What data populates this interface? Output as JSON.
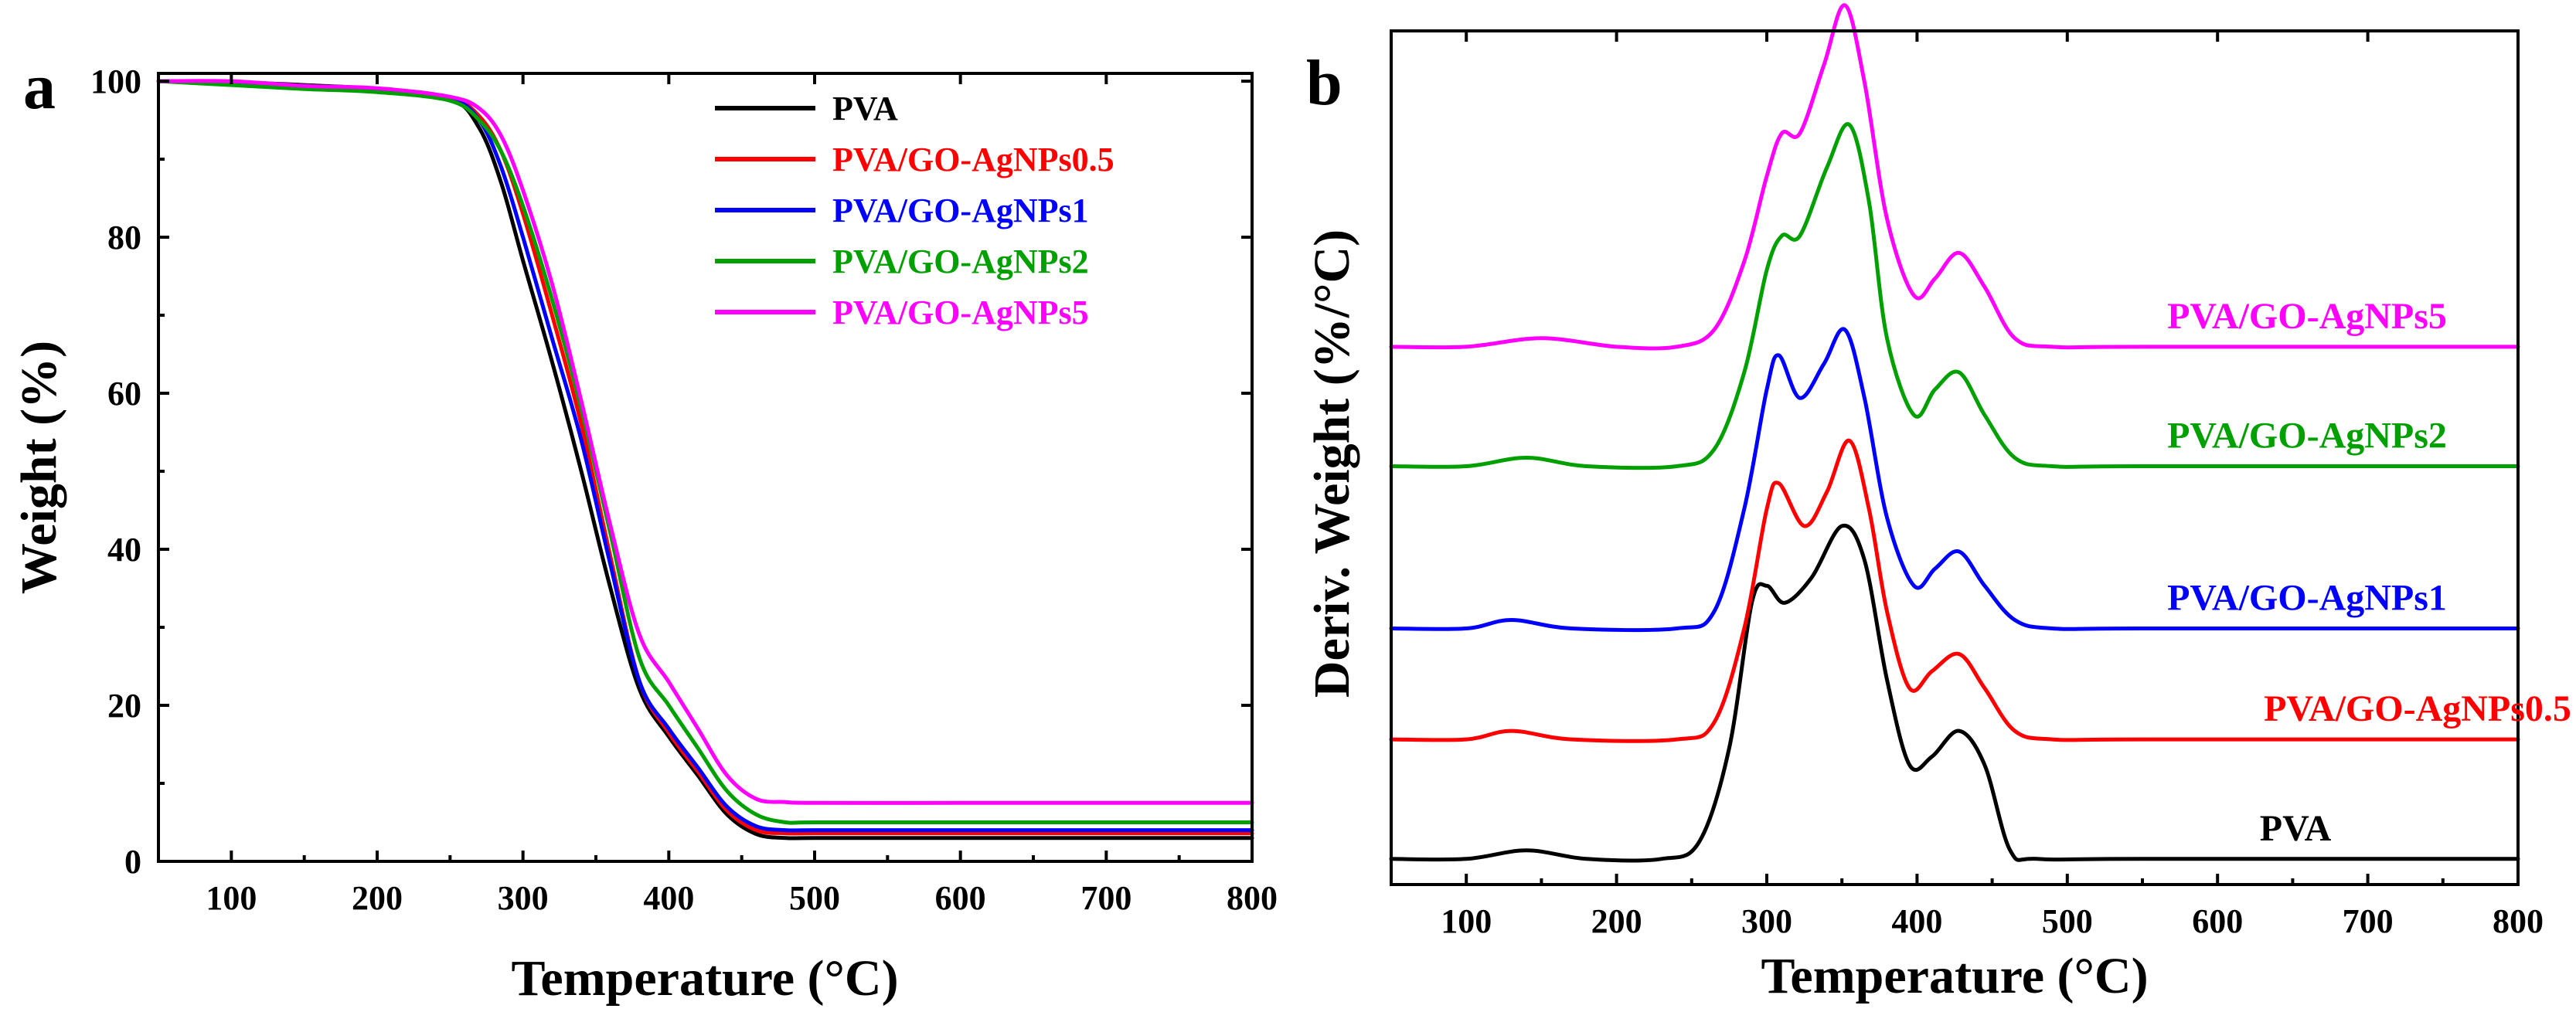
{
  "chart_data": [
    {
      "panel": "a",
      "type": "line",
      "title": "",
      "xlabel": "Temperature (°C)",
      "ylabel": "Weight (%)",
      "xlim": [
        50,
        800
      ],
      "ylim": [
        0,
        101
      ],
      "xticks": [
        100,
        200,
        300,
        400,
        500,
        600,
        700,
        800
      ],
      "yticks": [
        0,
        20,
        40,
        60,
        80,
        100
      ],
      "grid": false,
      "legend_position": "top-right",
      "series": [
        {
          "name": "PVA",
          "color": "#000000",
          "x": [
            50,
            100,
            150,
            200,
            250,
            270,
            285,
            300,
            320,
            340,
            360,
            380,
            400,
            420,
            440,
            460,
            480,
            500,
            600,
            700,
            800
          ],
          "y": [
            100,
            99.9,
            99.5,
            99,
            97.8,
            94,
            87,
            77,
            64,
            50,
            35,
            22,
            16,
            11,
            6,
            3.5,
            3,
            3,
            3,
            3,
            3
          ]
        },
        {
          "name": "PVA/GO-AgNPs0.5",
          "color": "#ff0000",
          "x": [
            50,
            100,
            150,
            200,
            250,
            270,
            285,
            300,
            320,
            340,
            360,
            380,
            400,
            420,
            440,
            460,
            480,
            500,
            600,
            700,
            800
          ],
          "y": [
            100,
            99.9,
            99.4,
            99,
            97.9,
            95.5,
            91,
            83,
            70,
            56,
            39,
            23,
            16.5,
            11.5,
            6.5,
            4,
            3.6,
            3.6,
            3.6,
            3.6,
            3.6
          ]
        },
        {
          "name": "PVA/GO-AgNPs1",
          "color": "#0000ff",
          "x": [
            50,
            100,
            150,
            200,
            250,
            270,
            285,
            300,
            320,
            340,
            360,
            380,
            400,
            420,
            440,
            460,
            480,
            500,
            600,
            700,
            800
          ],
          "y": [
            100,
            99.9,
            99.4,
            99,
            97.8,
            95,
            89,
            80,
            67,
            54,
            38,
            23,
            17,
            12,
            7,
            4.5,
            4,
            4,
            4,
            4,
            4
          ]
        },
        {
          "name": "PVA/GO-AgNPs2",
          "color": "#00a000",
          "x": [
            50,
            100,
            150,
            200,
            250,
            270,
            285,
            300,
            320,
            340,
            360,
            380,
            400,
            420,
            440,
            460,
            480,
            500,
            600,
            700,
            800
          ],
          "y": [
            100,
            99.5,
            99,
            98.6,
            97.5,
            95,
            91,
            84,
            72,
            58,
            42,
            26,
            20,
            14.5,
            9,
            6,
            5,
            5,
            5,
            5,
            5
          ]
        },
        {
          "name": "PVA/GO-AgNPs5",
          "color": "#ff00ff",
          "x": [
            50,
            100,
            150,
            200,
            250,
            270,
            285,
            300,
            320,
            340,
            360,
            380,
            400,
            420,
            440,
            460,
            480,
            500,
            600,
            700,
            800
          ],
          "y": [
            100,
            100,
            99.4,
            99.1,
            98,
            96.5,
            93,
            86,
            74,
            59,
            43,
            29,
            23,
            17,
            11,
            8,
            7.6,
            7.5,
            7.5,
            7.5,
            7.5
          ]
        }
      ]
    },
    {
      "panel": "b",
      "type": "line",
      "title": "",
      "xlabel": "Temperature (°C)",
      "ylabel": "Deriv. Weight (%/°C)",
      "xlim": [
        50,
        800
      ],
      "ylim": [
        0,
        100
      ],
      "xticks": [
        100,
        200,
        300,
        400,
        500,
        600,
        700,
        800
      ],
      "yticks": [],
      "grid": false,
      "legend_position": "curve labels on right",
      "series": [
        {
          "name": "PVA",
          "color": "#000000",
          "x": [
            50,
            100,
            140,
            180,
            230,
            255,
            275,
            290,
            300,
            312,
            330,
            350,
            365,
            380,
            395,
            410,
            428,
            445,
            462,
            480,
            550,
            800
          ],
          "y": [
            3,
            3,
            4,
            3,
            3,
            5,
            16,
            33,
            35,
            33,
            36,
            42,
            38,
            24,
            14,
            15,
            18,
            14,
            4,
            3,
            3,
            3
          ]
        },
        {
          "name": "PVA/GO-AgNPs0.5",
          "color": "#ff0000",
          "x": [
            50,
            100,
            130,
            170,
            240,
            265,
            285,
            300,
            308,
            325,
            340,
            355,
            368,
            380,
            395,
            410,
            428,
            445,
            465,
            490,
            550,
            800
          ],
          "y": [
            17,
            17,
            18,
            17,
            17,
            19,
            30,
            44,
            47,
            42,
            46,
            52,
            44,
            32,
            23,
            25,
            27,
            23,
            18,
            17,
            17,
            17
          ]
        },
        {
          "name": "PVA/GO-AgNPs1",
          "color": "#0000ff",
          "x": [
            50,
            100,
            130,
            170,
            240,
            265,
            285,
            300,
            308,
            322,
            338,
            352,
            365,
            380,
            398,
            412,
            428,
            445,
            465,
            490,
            550,
            800
          ],
          "y": [
            30,
            30,
            31,
            30,
            30,
            32,
            44,
            58,
            62,
            57,
            61,
            65,
            57,
            43,
            35,
            37,
            39,
            35,
            31,
            30,
            30,
            30
          ]
        },
        {
          "name": "PVA/GO-AgNPs2",
          "color": "#00a000",
          "x": [
            50,
            100,
            140,
            180,
            240,
            265,
            285,
            300,
            310,
            322,
            340,
            355,
            368,
            380,
            398,
            412,
            428,
            445,
            465,
            490,
            550,
            800
          ],
          "y": [
            49,
            49,
            50,
            49,
            49,
            51,
            60,
            72,
            76,
            76,
            84,
            89,
            80,
            64,
            55,
            58,
            60,
            55,
            50,
            49,
            49,
            49
          ]
        },
        {
          "name": "PVA/GO-AgNPs5",
          "color": "#ff00ff",
          "x": [
            50,
            100,
            150,
            200,
            240,
            265,
            285,
            300,
            310,
            322,
            338,
            352,
            365,
            380,
            398,
            412,
            428,
            445,
            465,
            490,
            550,
            800
          ],
          "y": [
            63,
            63,
            64,
            63,
            63,
            65,
            73,
            83,
            88,
            88,
            96,
            103,
            94,
            78,
            69,
            71,
            74,
            70,
            64,
            63,
            63,
            63
          ]
        }
      ]
    }
  ]
}
